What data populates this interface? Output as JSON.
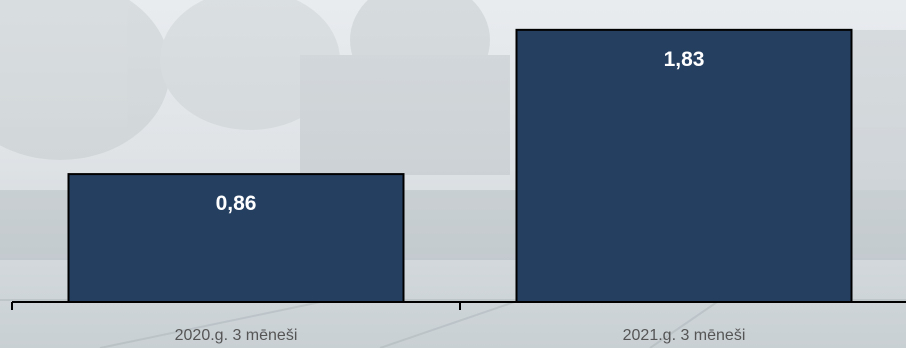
{
  "chart_data": {
    "type": "bar",
    "categories": [
      "2020.g. 3 mēneši",
      "2021.g. 3 mēneši"
    ],
    "values": [
      0.86,
      1.83
    ],
    "value_labels": [
      "0,86",
      "1,83"
    ],
    "title": "",
    "xlabel": "",
    "ylabel": "",
    "ylim": [
      0,
      1.95
    ],
    "grid": false,
    "legend": "none",
    "bar_color": "#253f61"
  }
}
